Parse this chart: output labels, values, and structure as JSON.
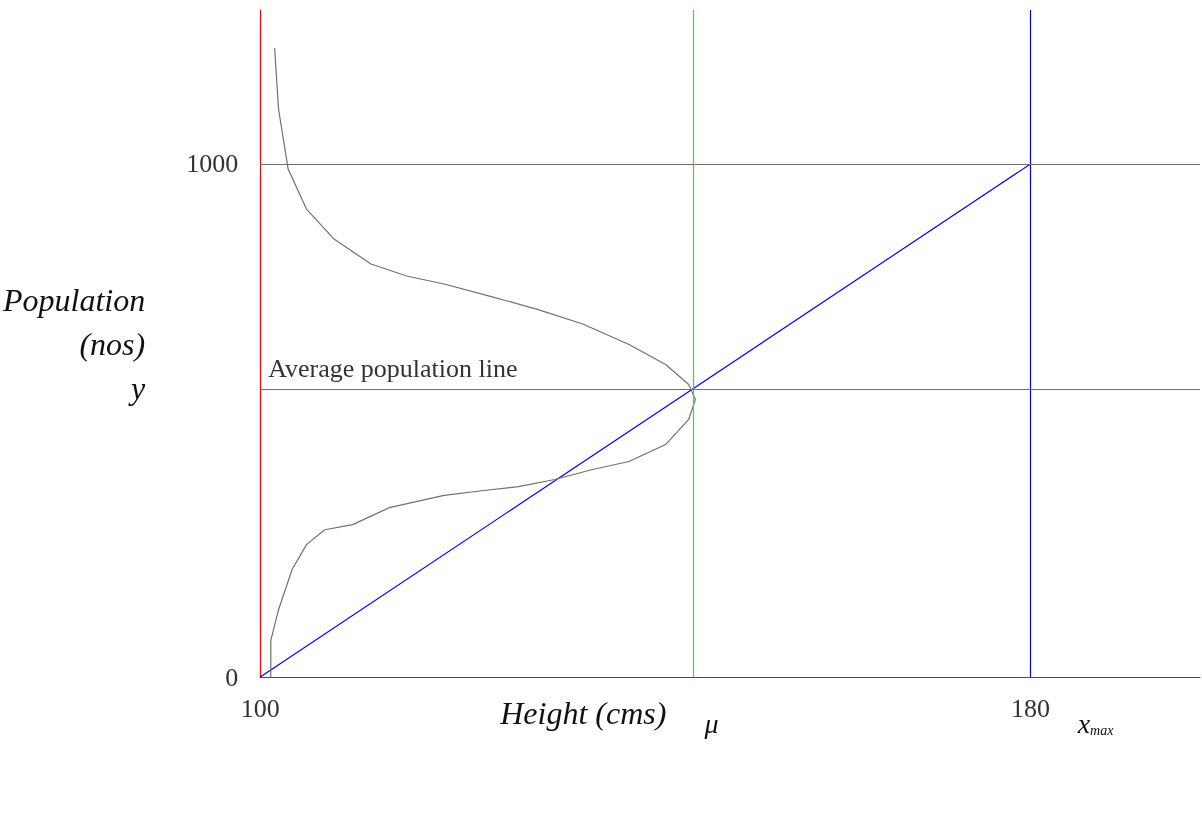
{
  "chart_data": {
    "type": "line",
    "xlabel": "Height (cms)",
    "ylabel": "Population\n(nos)\ny",
    "xlim": [
      100,
      197.6
    ],
    "ylim": [
      0,
      1300
    ],
    "xticks": [
      100,
      180
    ],
    "yticks": [
      0,
      1000
    ],
    "marker": "none",
    "line_style": "solid",
    "series": [
      {
        "color": "#0000ff",
        "x": [
          100,
          180
        ],
        "values": [
          0,
          1000
        ]
      },
      {
        "color": "#707070",
        "x": [
          101.5,
          101.9,
          102.9,
          104.8,
          107.7,
          111.5,
          115.3,
          119.1,
          123.9,
          128.7,
          133.5,
          138.3,
          142.1,
          144.5,
          145.2,
          144.5,
          142.1,
          138.3,
          134.4,
          130.6,
          126.8,
          123.0,
          119.1,
          113.4,
          109.6,
          106.7,
          104.8,
          103.3,
          101.9,
          101.1,
          101.1
        ],
        "values": [
          1225,
          1107,
          990,
          912,
          853,
          805,
          781,
          766,
          742,
          717,
          688,
          648,
          609,
          570,
          541,
          502,
          453,
          420,
          404,
          385,
          371,
          363,
          354,
          330,
          297,
          287,
          258,
          209,
          131,
          72,
          0
        ]
      }
    ],
    "ref_lines": [
      {
        "axis": "x",
        "value": 145,
        "label": "μ",
        "color": "#33dd33"
      },
      {
        "axis": "x",
        "value": 180,
        "label": "x$_{max}$",
        "color": "#0000ff"
      },
      {
        "axis": "y",
        "value": 1000,
        "color": "#707070"
      },
      {
        "axis": "y",
        "value": 560,
        "label": "Average population line",
        "color": "#707070"
      }
    ]
  }
}
